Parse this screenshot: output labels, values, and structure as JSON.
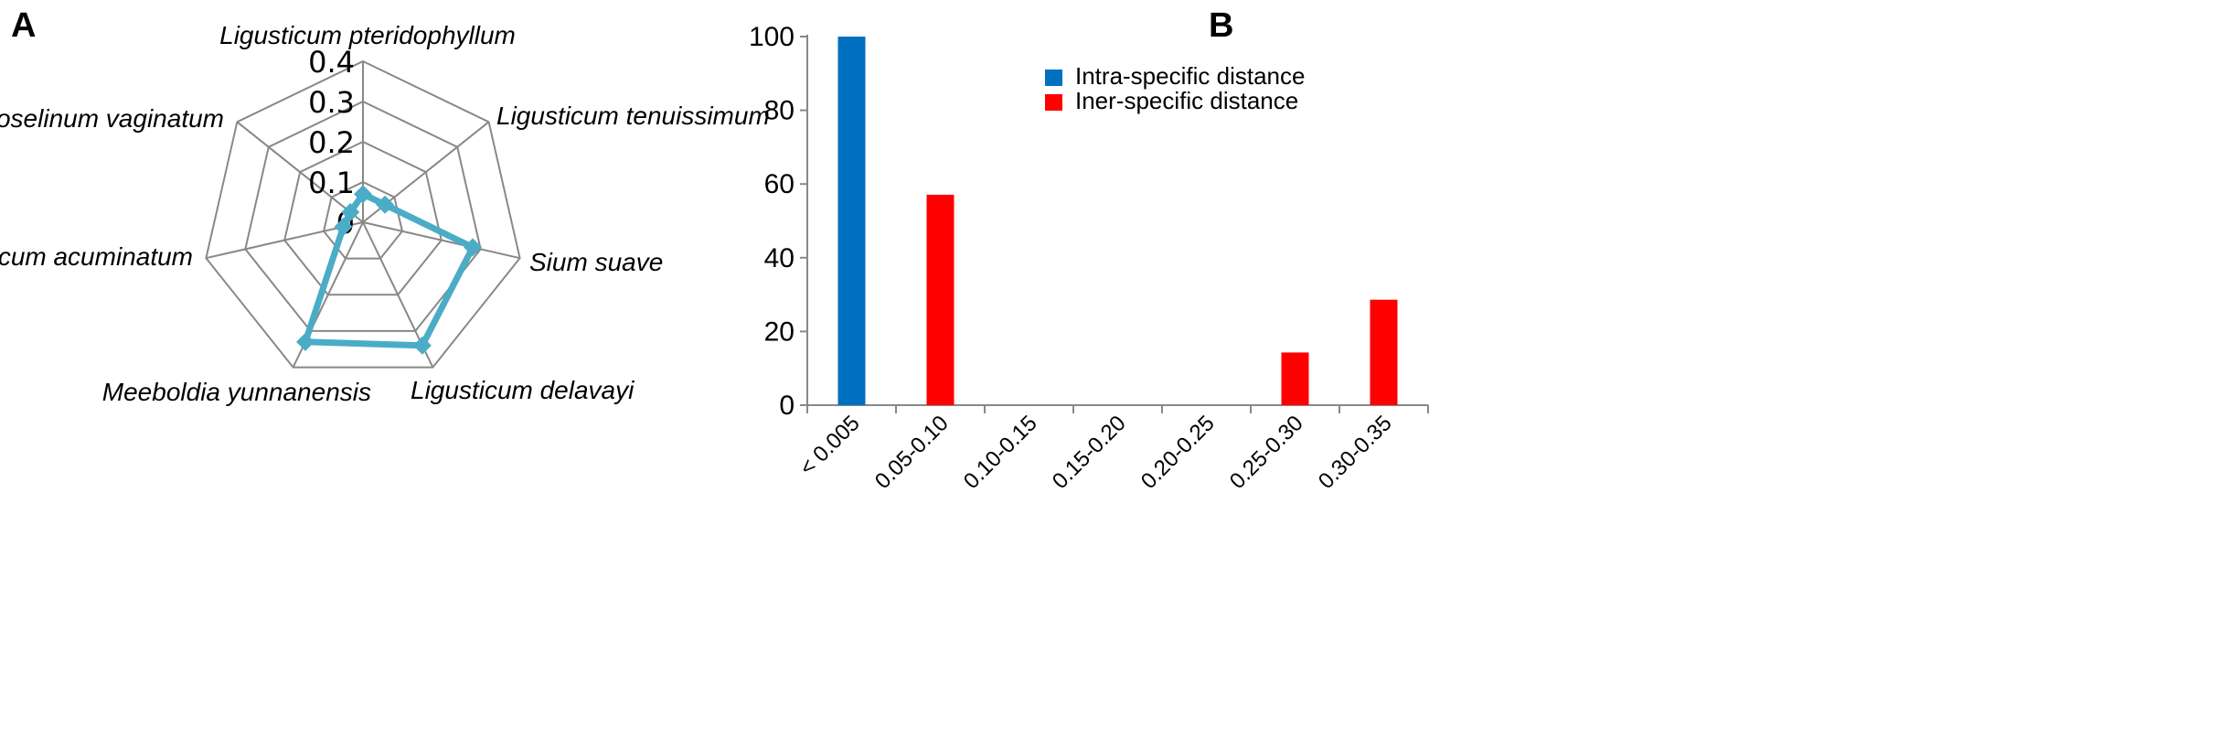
{
  "panels": {
    "a_label": "A",
    "b_label": "B"
  },
  "chart_data": [
    {
      "type": "radar",
      "axes": [
        "Ligusticum pteridophyllum",
        "Ligusticum tenuissimum",
        "Sium suave",
        "Ligusticum delavayi",
        "Meeboldia yunnanensis",
        "Ligusticum acuminatum",
        "Conioselinum vaginatum"
      ],
      "values": [
        0.07,
        0.07,
        0.28,
        0.34,
        0.33,
        0.05,
        0.04
      ],
      "ticks": [
        "0",
        "0.1",
        "0.2",
        "0.3",
        "0.4"
      ],
      "rmax": 0.4,
      "line_color": "#4bacc6",
      "grid_color": "#888888"
    },
    {
      "type": "bar",
      "categories": [
        "< 0.005",
        "0.05-0.10",
        "0.10-0.15",
        "0.15-0.20",
        "0.20-0.25",
        "0.25-0.30",
        "0.30-0.35"
      ],
      "series": [
        {
          "name": "Intra-specific distance",
          "color": "#0070c0",
          "values": [
            100,
            0,
            0,
            0,
            0,
            0,
            0
          ]
        },
        {
          "name": "Iner-specific distance",
          "color": "#ff0000",
          "values": [
            0,
            57.1,
            0,
            0,
            0,
            14.3,
            28.6
          ]
        }
      ],
      "yticks": [
        "0",
        "20",
        "40",
        "60",
        "80",
        "100"
      ],
      "ylim": [
        0,
        100
      ],
      "legend_position": "top-right"
    }
  ]
}
